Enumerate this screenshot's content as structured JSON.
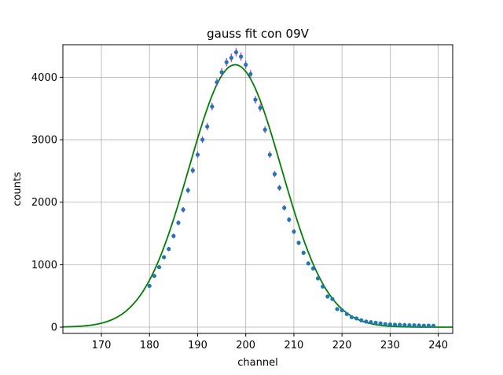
{
  "chart_data": {
    "type": "scatter",
    "title": "gauss fit con 09V",
    "xlabel": "channel",
    "ylabel": "counts",
    "xlim": [
      162,
      243
    ],
    "ylim": [
      -100,
      4520
    ],
    "xticks": [
      170,
      180,
      190,
      200,
      210,
      220,
      230,
      240
    ],
    "yticks": [
      0,
      1000,
      2000,
      3000,
      4000
    ],
    "grid": true,
    "colors": {
      "points": "#1f77b4",
      "errorbars": "#d62fd6",
      "fit": "#008000"
    },
    "series": [
      {
        "type": "scatter_errorbar",
        "x": [
          180,
          181,
          182,
          183,
          184,
          185,
          186,
          187,
          188,
          189,
          190,
          191,
          192,
          193,
          194,
          195,
          196,
          197,
          198,
          199,
          200,
          201,
          202,
          203,
          204,
          205,
          206,
          207,
          208,
          209,
          210,
          211,
          212,
          213,
          214,
          215,
          216,
          217,
          218,
          219,
          220,
          221,
          222,
          223,
          224,
          225,
          226,
          227,
          228,
          229,
          230,
          231,
          232,
          233,
          234,
          235,
          236,
          237,
          238,
          239
        ],
        "y": [
          660,
          820,
          960,
          1120,
          1250,
          1460,
          1670,
          1880,
          2190,
          2510,
          2760,
          3000,
          3210,
          3530,
          3920,
          4080,
          4240,
          4310,
          4400,
          4330,
          4200,
          4050,
          3640,
          3510,
          3160,
          2760,
          2450,
          2230,
          1910,
          1720,
          1530,
          1350,
          1190,
          1020,
          940,
          780,
          650,
          490,
          450,
          290,
          270,
          210,
          160,
          140,
          110,
          90,
          80,
          70,
          60,
          50,
          45,
          40,
          38,
          35,
          30,
          30,
          28,
          25,
          25,
          22
        ],
        "yerr": [
          26,
          29,
          31,
          33,
          35,
          38,
          41,
          43,
          47,
          50,
          53,
          55,
          57,
          59,
          63,
          64,
          65,
          66,
          66,
          66,
          65,
          64,
          60,
          59,
          56,
          53,
          49,
          47,
          44,
          41,
          39,
          37,
          34,
          32,
          31,
          28,
          25,
          22,
          21,
          17,
          16,
          14,
          13,
          12,
          10,
          9,
          9,
          8,
          8,
          7,
          7,
          6,
          6,
          6,
          5,
          5,
          5,
          5,
          5,
          5
        ]
      },
      {
        "type": "line",
        "label": "",
        "function": "gaussian",
        "amplitude": 4200,
        "mean": 197.8,
        "sigma": 9.6,
        "x_range": [
          162,
          243
        ]
      }
    ]
  }
}
